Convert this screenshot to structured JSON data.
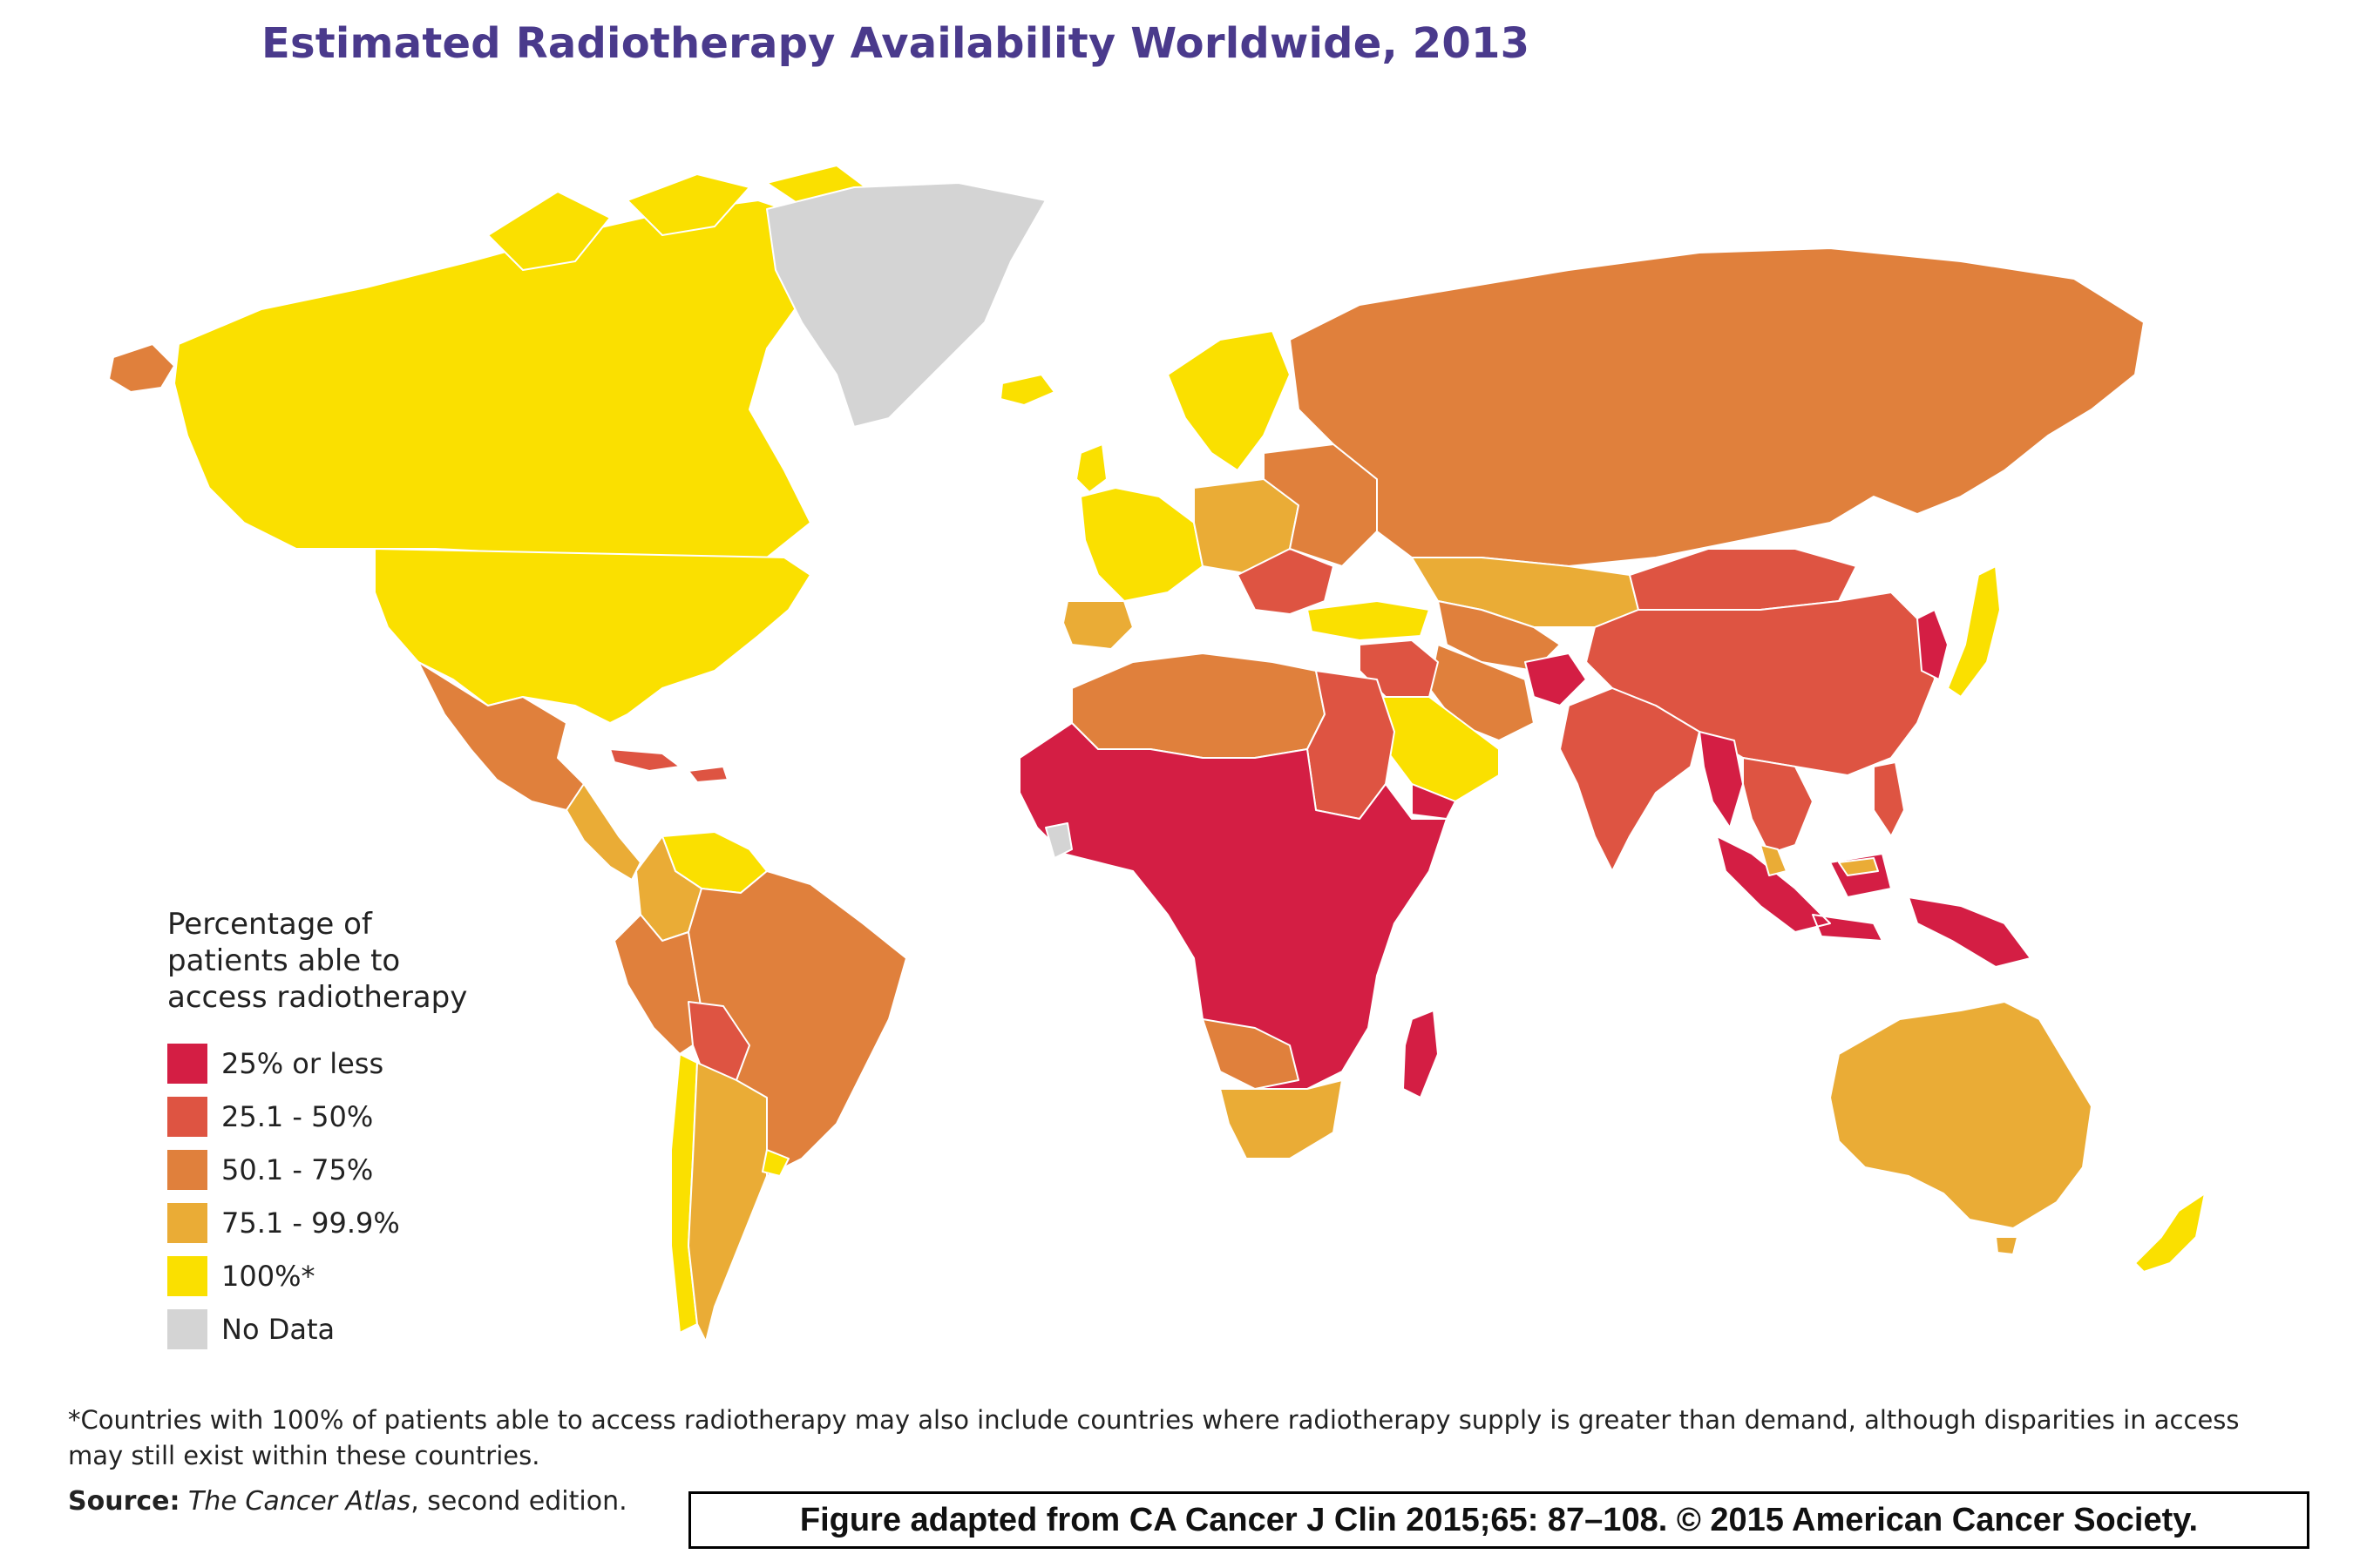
{
  "title": "Estimated Radiotherapy Availability Worldwide, 2013",
  "legend": {
    "title": "Percentage of patients able to access radiotherapy",
    "items": [
      {
        "label": "25% or less",
        "color": "#d41e44"
      },
      {
        "label": "25.1 - 50%",
        "color": "#de5442"
      },
      {
        "label": "50.1 - 75%",
        "color": "#e0803c"
      },
      {
        "label": "75.1 - 99.9%",
        "color": "#eaac36"
      },
      {
        "label": "100%*",
        "color": "#fae000"
      },
      {
        "label": "No Data",
        "color": "#d4d4d4"
      }
    ]
  },
  "footnote": "*Countries with 100% of patients able to access radiotherapy may also include countries where radiotherapy supply is greater than demand, although disparities in access may still exist within these countries.",
  "source": {
    "label": "Source:",
    "publication": "The Cancer Atlas",
    "edition": ", second edition."
  },
  "credit": "Figure adapted from CA Cancer J Clin 2015;65: 87–108. © 2015 American Cancer Society."
}
